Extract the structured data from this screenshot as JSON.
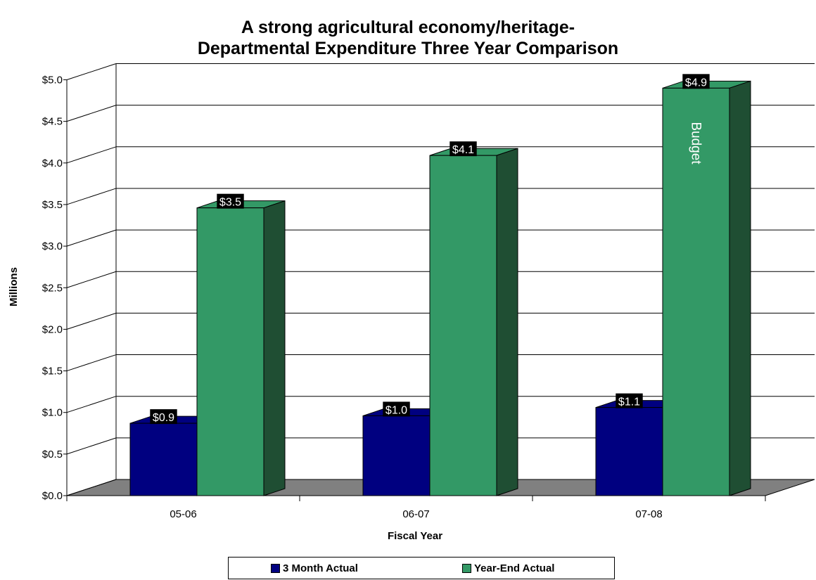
{
  "chart_data": {
    "type": "bar",
    "title": [
      "A strong agricultural economy/heritage-",
      "Departmental Expenditure Three Year Comparison"
    ],
    "xlabel": "Fiscal Year",
    "ylabel": "Millions",
    "ylim": [
      0,
      5
    ],
    "ytick_labels": [
      "$0.0",
      "$0.5",
      "$1.0",
      "$1.5",
      "$2.0",
      "$2.5",
      "$3.0",
      "$3.5",
      "$4.0",
      "$4.5",
      "$5.0"
    ],
    "categories": [
      "05-06",
      "06-07",
      "07-08"
    ],
    "series": [
      {
        "name": "3 Month Actual",
        "values": [
          0.87,
          0.96,
          1.06
        ],
        "data_labels": [
          "$0.9",
          "$1.0",
          "$1.1"
        ],
        "color": "#000080"
      },
      {
        "name": "Year-End Actual",
        "values": [
          3.46,
          4.09,
          4.9
        ],
        "data_labels": [
          "$3.5",
          "$4.1",
          "$4.9"
        ],
        "color": "#339966"
      }
    ],
    "annotations": [
      {
        "category": "07-08",
        "series": "Year-End Actual",
        "text": "Budget"
      }
    ],
    "grid": true,
    "legend": "bottom",
    "colors": {
      "wall": "#ffffff",
      "floor": "#808080",
      "side_green": "#1f4e33",
      "side_blue": "#000040",
      "label_bg": "#000000"
    }
  }
}
